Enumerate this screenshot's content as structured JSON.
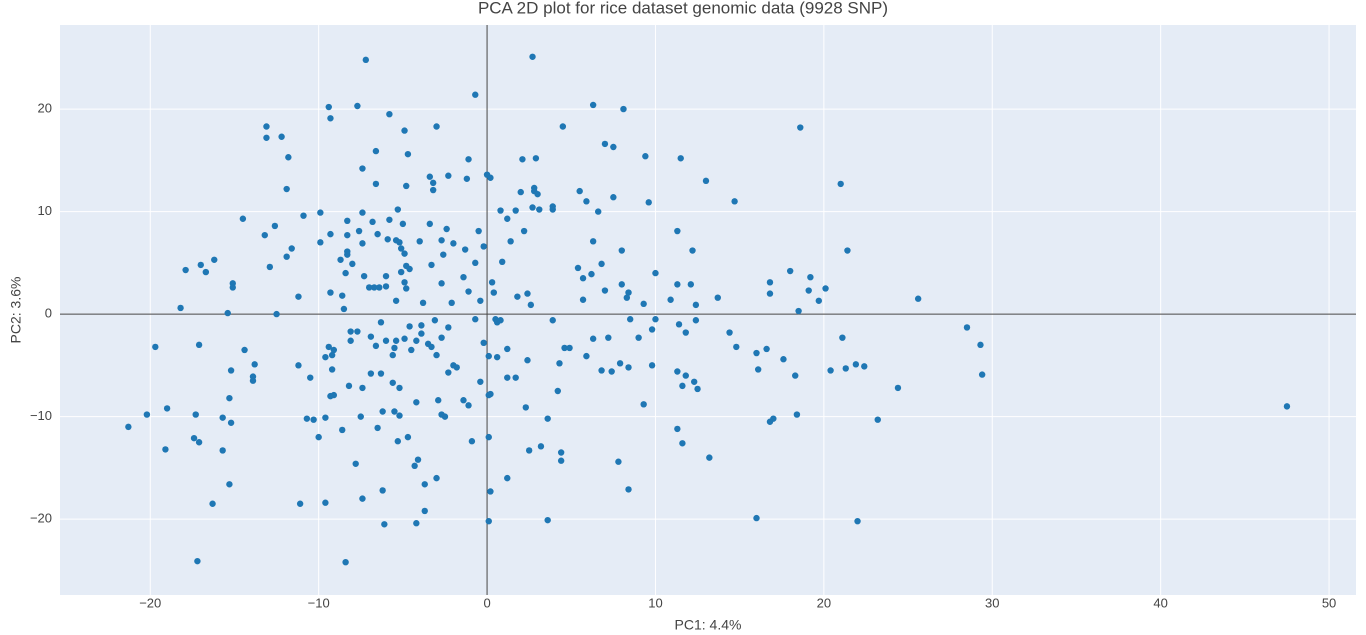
{
  "chart_data": {
    "type": "scatter",
    "title": "PCA 2D plot for rice dataset genomic data (9928 SNP)",
    "x_label": "PC1: 4.4%",
    "y_label": "PC2: 3.6%",
    "color": "#1f77b4",
    "grid": true,
    "zeroline": true,
    "xlim": [
      -25.36,
      51.6
    ],
    "ylim": [
      -27.4,
      28.2
    ],
    "xticks": [
      {
        "value": -20,
        "label": "−20"
      },
      {
        "value": -10,
        "label": "−10"
      },
      0,
      10,
      20,
      30,
      40,
      50
    ],
    "yticks": [
      {
        "value": -20,
        "label": "−20"
      },
      {
        "value": -10,
        "label": "−10"
      },
      0,
      10,
      20
    ],
    "x": [
      -7.2,
      2.7,
      -0.7,
      -9.4,
      -7.7,
      6.3,
      8.1,
      -9.3,
      -5.8,
      -13.1,
      -12.2,
      -13.1,
      -4.9,
      -3.0,
      4.5,
      18.6,
      7.0,
      7.5,
      -6.6,
      -4.7,
      -11.8,
      -1.1,
      2.1,
      2.9,
      9.4,
      11.5,
      -7.4,
      13.0,
      -3.4,
      -2.3,
      -1.2,
      0,
      0.2,
      -3.2,
      -6.6,
      -4.8,
      -11.9,
      -3.2,
      2.0,
      2.8,
      2.8,
      3.0,
      5.5,
      21.0,
      5.9,
      7.5,
      9.6,
      14.7,
      3.9,
      3.9,
      2.7,
      3.1,
      1.7,
      0.8,
      -5.3,
      -9.9,
      -7.4,
      -10.9,
      6.6,
      -14.5,
      1.2,
      -5.8,
      -8.3,
      -6.8,
      -5.0,
      -3.4,
      -12.6,
      -2.4,
      2.2,
      -0.5,
      -7.6,
      11.3,
      -13.2,
      -9.3,
      -8.3,
      -6.5,
      -5.9,
      -5.4,
      -5.2,
      -9.9,
      -7.4,
      -4.0,
      -2.7,
      1.4,
      6.3,
      -2.0,
      -0.2,
      -11.6,
      -5.1,
      -4.9,
      -1.3,
      -2.6,
      -8.3,
      -8.3,
      8.0,
      12.2,
      21.4,
      -11.9,
      -8.7,
      -8.0,
      -16.2,
      -17.0,
      -16.7,
      -17.9,
      -12.9,
      -3.3,
      -0.7,
      0.9,
      -4.8,
      -4.6,
      -5.1,
      -8.4,
      -6.0,
      5.4,
      6.8,
      6.2,
      10.0,
      18.0,
      19.2,
      -1.4,
      -7.3,
      -15.1,
      -15.1,
      -7.0,
      -6.7,
      -6.4,
      -6.0,
      -4.9,
      -4.8,
      -2.7,
      0.3,
      5.7,
      8.0,
      11.3,
      12.1,
      16.8,
      16.8,
      19.1,
      20.1,
      7.0,
      8.4,
      8.3,
      -9.3,
      -8.6,
      -1.1,
      0.4,
      2.4,
      -11.2,
      -5.4,
      -3.8,
      -2.1,
      -0.4,
      1.8,
      2.6,
      5.7,
      9.3,
      10.9,
      13.7,
      12.4,
      19.7,
      25.6,
      -18.2,
      -8.5,
      -15.4,
      -12.5,
      18.5,
      0.5,
      0.6,
      0.8,
      -3.1,
      -0.7,
      3.9,
      8.5,
      10.0,
      12.4,
      -6.3,
      -4.6,
      -3.9,
      -2.3,
      11.4,
      9.8,
      28.5,
      -8.1,
      -7.7,
      -3.9,
      -6.9,
      -6.0,
      -5.4,
      -8.1,
      -4.9,
      -4.2,
      -3.5,
      -2.7,
      6.3,
      7.2,
      9.0,
      11.8,
      14.4,
      21.1,
      29.3,
      -19.7,
      -17.1,
      -14.4,
      -9.4,
      -6.6,
      -5.5,
      -3.3,
      -0.2,
      1.2,
      4.6,
      4.9,
      14.8,
      16.6,
      -9.1,
      -4.5,
      -9.2,
      -5.6,
      -3.0,
      0.1,
      0.6,
      5.9,
      16.0,
      17.6,
      -9.6,
      2.4,
      4.3,
      7.9,
      8.4,
      9.8,
      16.1,
      20.4,
      21.3,
      21.9,
      22.4,
      -2.0,
      -1.8,
      -11.2,
      -13.8,
      -15.2,
      -9.2,
      -6.9,
      -6.3,
      -2.3,
      6.8,
      7.4,
      11.3,
      11.8,
      18.3,
      29.4,
      -13.9,
      -13.9,
      -10.5,
      1.2,
      1.7,
      -5.6,
      12.3,
      11.6,
      12.5,
      -8.2,
      -7.4,
      -5.2,
      -0.4,
      24.4,
      4.2,
      0.2,
      0.1,
      -9.1,
      -9.3,
      -4.2,
      -2.9,
      -1.4,
      -1.1,
      -15.3,
      -19.0,
      2.3,
      9.3,
      47.5,
      18.4,
      -20.2,
      -17.3,
      -6.2,
      -5.5,
      -5.2,
      -2.7,
      -2.5,
      -7.5,
      -9.6,
      17.0,
      -10.7,
      -10.3,
      -15.7,
      -15.2,
      3.6,
      16.8,
      23.2,
      -21.3,
      -8.6,
      -6.5,
      11.3,
      -17.4,
      -17.1,
      -10.0,
      -5.3,
      -4.7,
      -0.9,
      0.1,
      11.6,
      -19.1,
      -15.7,
      2.5,
      3.2,
      4.4,
      4.4,
      13.2,
      -4.1,
      -4.3,
      -7.8,
      7.8,
      1.2,
      -3.0,
      -3.7,
      -15.3,
      -6.2,
      0.2,
      8.4,
      -7.4,
      -16.3,
      -11.1,
      -9.6,
      -3.7,
      16.0,
      3.6,
      0.1,
      -6.1,
      -4.2,
      22.0,
      -17.2,
      -8.4
    ],
    "values": [
      24.8,
      25.1,
      21.4,
      20.2,
      20.3,
      20.4,
      20.0,
      19.1,
      19.5,
      18.3,
      17.3,
      17.2,
      17.9,
      18.3,
      18.3,
      18.2,
      16.6,
      16.3,
      15.9,
      15.6,
      15.3,
      15.1,
      15.1,
      15.2,
      15.4,
      15.2,
      14.2,
      13.0,
      13.4,
      13.5,
      13.2,
      13.6,
      13.3,
      12.8,
      12.7,
      12.5,
      12.2,
      12.1,
      11.9,
      12.3,
      12.0,
      11.7,
      12.0,
      12.7,
      11.0,
      11.4,
      10.9,
      11.0,
      10.5,
      10.2,
      10.4,
      10.2,
      10.1,
      10.1,
      10.2,
      9.9,
      9.9,
      9.6,
      10.0,
      9.3,
      9.3,
      9.2,
      9.1,
      9.0,
      8.8,
      8.8,
      8.6,
      8.3,
      8.1,
      8.1,
      8.1,
      8.1,
      7.7,
      7.8,
      7.7,
      7.8,
      7.3,
      7.2,
      7.0,
      7.0,
      6.9,
      7.1,
      7.2,
      7.1,
      7.1,
      6.9,
      6.6,
      6.4,
      6.4,
      5.9,
      6.3,
      5.8,
      6.1,
      5.8,
      6.2,
      6.2,
      6.2,
      5.6,
      5.3,
      4.9,
      5.3,
      4.8,
      4.1,
      4.3,
      4.6,
      4.8,
      5.0,
      5.1,
      4.7,
      4.4,
      4.1,
      4.0,
      3.7,
      4.5,
      4.9,
      3.9,
      4.0,
      4.2,
      3.6,
      3.6,
      3.7,
      3.0,
      2.6,
      2.6,
      2.6,
      2.6,
      2.7,
      3.1,
      2.5,
      3.0,
      3.1,
      3.5,
      2.9,
      2.9,
      2.9,
      3.1,
      2.0,
      2.3,
      2.5,
      2.3,
      2.1,
      1.6,
      2.1,
      1.8,
      2.2,
      2.1,
      2.0,
      1.7,
      1.3,
      1.1,
      1.1,
      1.3,
      1.7,
      0.9,
      1.4,
      1.0,
      1.4,
      1.6,
      0.9,
      1.3,
      1.5,
      0.6,
      0.5,
      0.1,
      0.0,
      0.3,
      -0.5,
      -0.8,
      -0.6,
      -0.6,
      -0.5,
      -0.6,
      -0.5,
      -0.5,
      -0.6,
      -0.8,
      -1.2,
      -1.1,
      -1.3,
      -1.0,
      -1.5,
      -1.3,
      -1.7,
      -1.7,
      -1.9,
      -2.2,
      -2.6,
      -2.6,
      -2.6,
      -2.4,
      -2.6,
      -2.9,
      -2.3,
      -2.4,
      -2.3,
      -2.3,
      -1.8,
      -1.8,
      -2.3,
      -3.0,
      -3.2,
      -3.0,
      -3.5,
      -3.2,
      -3.1,
      -3.3,
      -3.2,
      -2.8,
      -3.4,
      -3.3,
      -3.3,
      -3.2,
      -3.4,
      -3.5,
      -3.5,
      -4.0,
      -4.0,
      -4.0,
      -4.1,
      -4.2,
      -4.1,
      -3.8,
      -4.4,
      -4.2,
      -4.5,
      -4.8,
      -4.8,
      -5.2,
      -5.0,
      -5.4,
      -5.5,
      -5.3,
      -4.9,
      -5.1,
      -5.0,
      -5.2,
      -5.0,
      -4.9,
      -5.5,
      -5.4,
      -5.8,
      -5.8,
      -5.7,
      -5.5,
      -5.6,
      -5.6,
      -6.0,
      -6.0,
      -5.9,
      -6.1,
      -6.5,
      -6.2,
      -6.2,
      -6.2,
      -6.7,
      -6.6,
      -7.0,
      -7.3,
      -7.0,
      -7.2,
      -7.2,
      -6.6,
      -7.2,
      -7.5,
      -7.8,
      -7.9,
      -7.9,
      -8.0,
      -8.6,
      -8.4,
      -8.4,
      -8.9,
      -8.2,
      -9.2,
      -9.1,
      -8.8,
      -9.0,
      -9.8,
      -9.8,
      -9.8,
      -9.5,
      -9.5,
      -9.9,
      -9.8,
      -10.0,
      -10.0,
      -10.1,
      -10.2,
      -10.2,
      -10.3,
      -10.1,
      -10.6,
      -10.2,
      -10.5,
      -10.3,
      -11.0,
      -11.3,
      -11.1,
      -11.2,
      -12.1,
      -12.5,
      -12.0,
      -12.4,
      -12.0,
      -12.4,
      -12.0,
      -12.6,
      -13.2,
      -13.3,
      -13.3,
      -12.9,
      -13.5,
      -14.3,
      -14.0,
      -14.2,
      -14.8,
      -14.6,
      -14.4,
      -16.0,
      -16.0,
      -16.6,
      -16.6,
      -17.2,
      -17.3,
      -17.1,
      -18.0,
      -18.5,
      -18.5,
      -18.4,
      -19.2,
      -19.9,
      -20.1,
      -20.2,
      -20.5,
      -20.4,
      -20.2,
      -24.1,
      -24.2
    ]
  }
}
